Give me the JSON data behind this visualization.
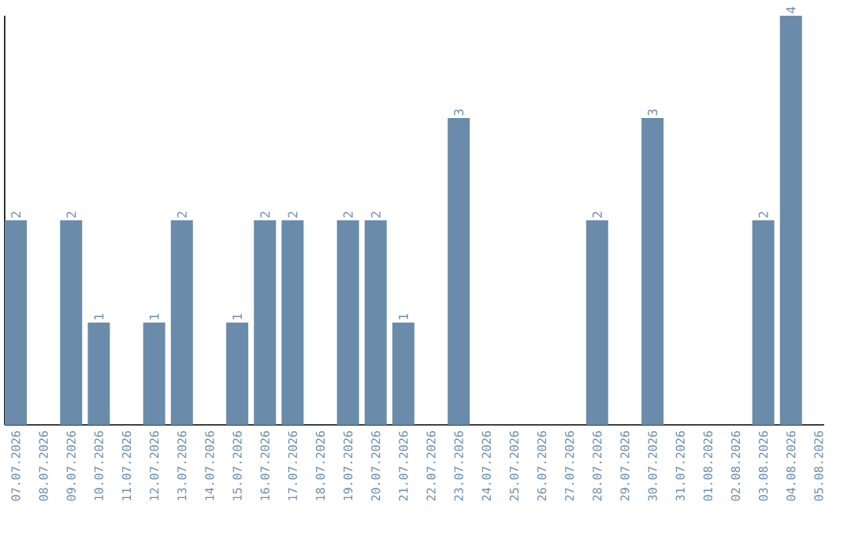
{
  "chart_data": {
    "type": "bar",
    "categories": [
      "07.07.2026",
      "08.07.2026",
      "09.07.2026",
      "10.07.2026",
      "11.07.2026",
      "12.07.2026",
      "13.07.2026",
      "14.07.2026",
      "15.07.2026",
      "16.07.2026",
      "17.07.2026",
      "18.07.2026",
      "19.07.2026",
      "20.07.2026",
      "21.07.2026",
      "22.07.2026",
      "23.07.2026",
      "24.07.2026",
      "25.07.2026",
      "26.07.2026",
      "27.07.2026",
      "28.07.2026",
      "29.07.2026",
      "30.07.2026",
      "31.07.2026",
      "01.08.2026",
      "02.08.2026",
      "03.08.2026",
      "04.08.2026",
      "05.08.2026"
    ],
    "values": [
      2,
      null,
      2,
      1,
      null,
      1,
      2,
      null,
      1,
      2,
      2,
      null,
      2,
      2,
      1,
      null,
      3,
      null,
      null,
      null,
      null,
      2,
      null,
      3,
      null,
      null,
      null,
      2,
      4,
      null
    ],
    "color": "#6a8caa",
    "data_labels": true,
    "tick_labels": "x",
    "grid": false
  }
}
